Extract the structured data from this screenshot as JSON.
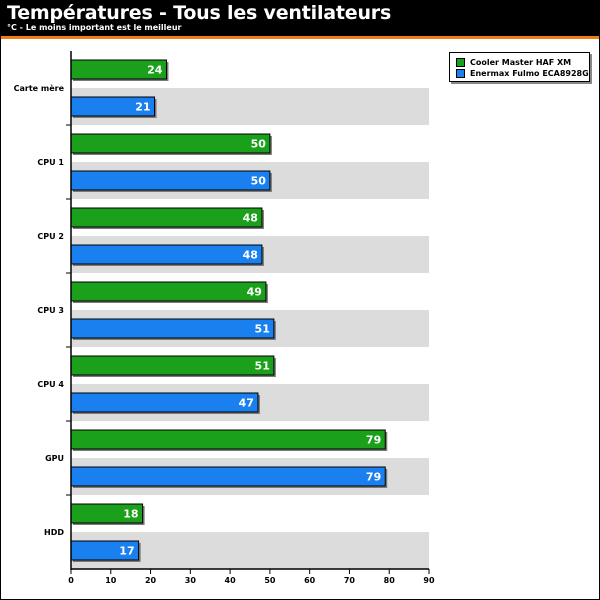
{
  "title": "Températures - Tous les ventilateurs",
  "subtitle": "°C - Le moins important est le meilleur",
  "colors": {
    "header_bg": "#000000",
    "accent": "#f07c18",
    "row_shade": "#dcdcdc",
    "series_1": "#1aa01a",
    "series_2": "#1a80f0"
  },
  "chart_data": {
    "type": "bar",
    "orientation": "horizontal",
    "categories": [
      "Carte mère",
      "CPU 1",
      "CPU 2",
      "CPU 3",
      "CPU 4",
      "GPU",
      "HDD"
    ],
    "series": [
      {
        "name": "Cooler Master HAF XM",
        "color": "#1aa01a",
        "values": [
          24,
          50,
          48,
          49,
          51,
          79,
          18
        ]
      },
      {
        "name": "Enermax Fulmo ECA8928G",
        "color": "#1a80f0",
        "values": [
          21,
          50,
          48,
          51,
          47,
          79,
          17
        ]
      }
    ],
    "xlim": [
      0,
      90
    ],
    "x_ticks": [
      0,
      10,
      20,
      30,
      40,
      50,
      60,
      70,
      80,
      90
    ],
    "data_labels": true,
    "legend_position": "top-right",
    "grid": false
  }
}
